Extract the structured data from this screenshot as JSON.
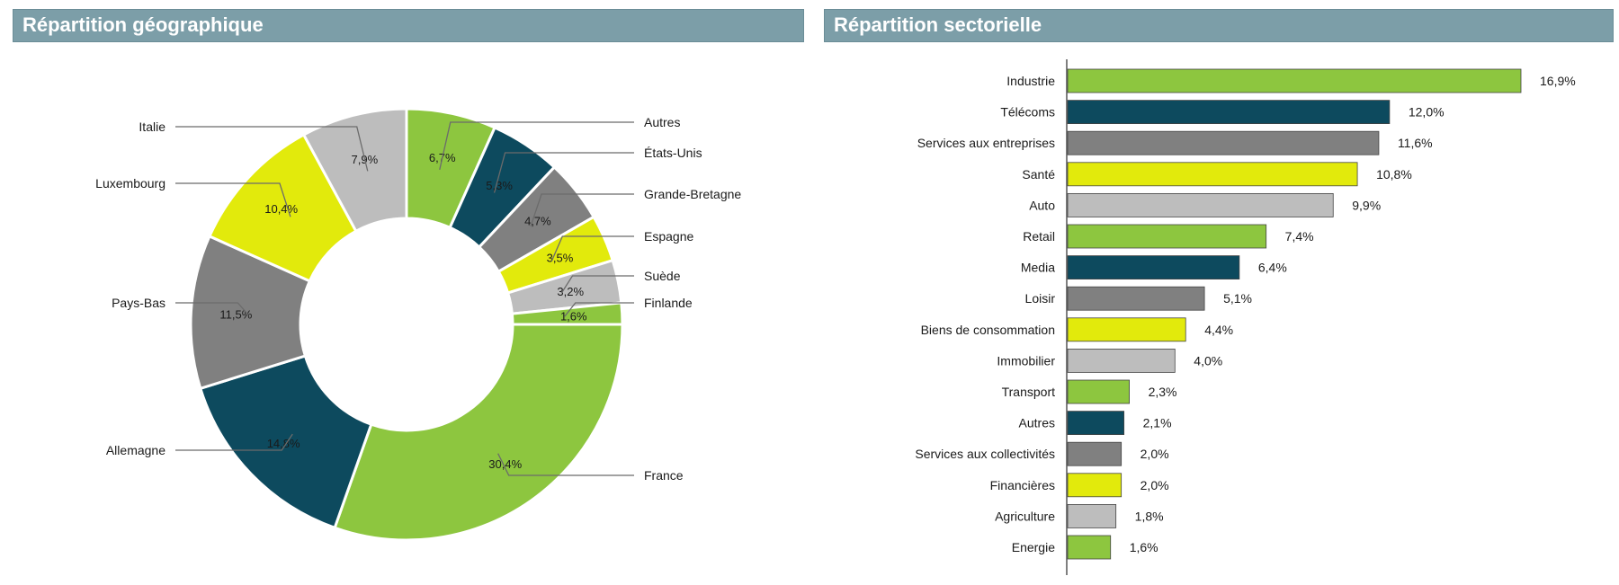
{
  "geo_title": "Répartition géographique",
  "sector_title": "Répartition sectorielle",
  "colors": {
    "green": "#8dc63f",
    "navy": "#0d4a5e",
    "darkgray": "#808080",
    "yellow": "#e2ea0c",
    "lightgray": "#bdbdbd",
    "header": "#7c9ea8"
  },
  "chart_data": [
    {
      "type": "pie",
      "title": "Répartition géographique",
      "donut": true,
      "slices": [
        {
          "label": "Autres",
          "value": 6.7,
          "value_label": "6,7%",
          "color": "green"
        },
        {
          "label": "États-Unis",
          "value": 5.3,
          "value_label": "5,3%",
          "color": "navy"
        },
        {
          "label": "Grande-Bretagne",
          "value": 4.7,
          "value_label": "4,7%",
          "color": "darkgray"
        },
        {
          "label": "Espagne",
          "value": 3.5,
          "value_label": "3,5%",
          "color": "yellow"
        },
        {
          "label": "Suède",
          "value": 3.2,
          "value_label": "3,2%",
          "color": "lightgray"
        },
        {
          "label": "Finlande",
          "value": 1.6,
          "value_label": "1,6%",
          "color": "green"
        },
        {
          "label": "France",
          "value": 30.4,
          "value_label": "30,4%",
          "color": "green"
        },
        {
          "label": "Allemagne",
          "value": 14.8,
          "value_label": "14,8%",
          "color": "navy"
        },
        {
          "label": "Pays-Bas",
          "value": 11.5,
          "value_label": "11,5%",
          "color": "darkgray"
        },
        {
          "label": "Luxembourg",
          "value": 10.4,
          "value_label": "10,4%",
          "color": "yellow"
        },
        {
          "label": "Italie",
          "value": 7.9,
          "value_label": "7,9%",
          "color": "lightgray"
        }
      ]
    },
    {
      "type": "bar",
      "orientation": "horizontal",
      "title": "Répartition sectorielle",
      "categories": [
        "Industrie",
        "Télécoms",
        "Services aux entreprises",
        "Santé",
        "Auto",
        "Retail",
        "Media",
        "Loisir",
        "Biens de consommation",
        "Immobilier",
        "Transport",
        "Autres",
        "Services aux collectivités",
        "Financières",
        "Agriculture",
        "Energie"
      ],
      "values": [
        16.9,
        12.0,
        11.6,
        10.8,
        9.9,
        7.4,
        6.4,
        5.1,
        4.4,
        4.0,
        2.3,
        2.1,
        2.0,
        2.0,
        1.8,
        1.6
      ],
      "value_labels": [
        "16,9%",
        "12,0%",
        "11,6%",
        "10,8%",
        "9,9%",
        "7,4%",
        "6,4%",
        "5,1%",
        "4,4%",
        "4,0%",
        "2,3%",
        "2,1%",
        "2,0%",
        "2,0%",
        "1,8%",
        "1,6%"
      ],
      "bar_colors": [
        "green",
        "navy",
        "darkgray",
        "yellow",
        "lightgray",
        "green",
        "navy",
        "darkgray",
        "yellow",
        "lightgray",
        "green",
        "navy",
        "darkgray",
        "yellow",
        "lightgray",
        "green"
      ],
      "xlim": [
        0,
        16.9
      ]
    }
  ]
}
